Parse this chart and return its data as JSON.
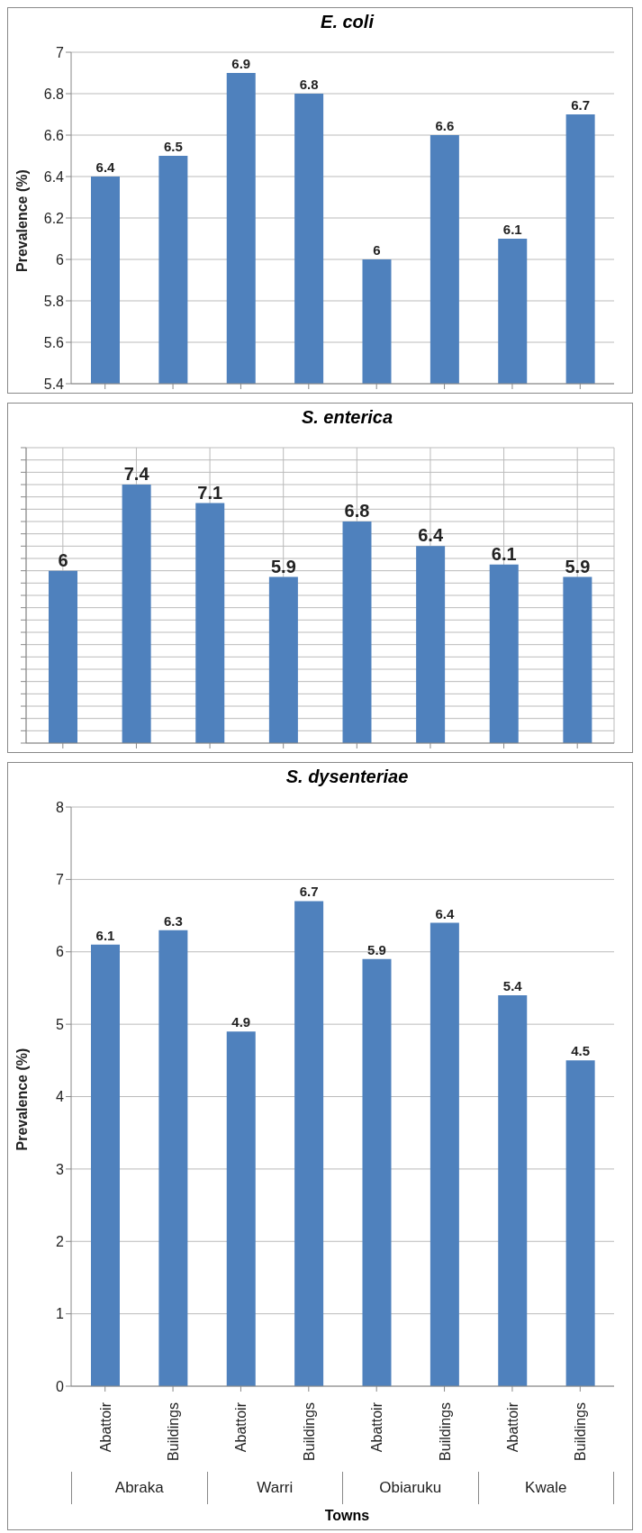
{
  "chart_data": [
    {
      "type": "bar",
      "title": "E. coli",
      "ylabel": "Prevalence (%)",
      "categories": [
        null,
        null,
        null,
        null,
        null,
        null,
        null,
        null
      ],
      "values": [
        6.4,
        6.5,
        6.9,
        6.8,
        6,
        6.6,
        6.1,
        6.7
      ],
      "color": "#4f81bd",
      "ylim": [
        5.4,
        7
      ],
      "yticks": [
        5.4,
        5.6,
        5.8,
        6,
        6.2,
        6.4,
        6.6,
        6.8,
        7
      ],
      "grid": "y",
      "data_labels": true,
      "tick_labels": "y"
    },
    {
      "type": "bar",
      "title": "S. enterica",
      "categories": [
        null,
        null,
        null,
        null,
        null,
        null,
        null,
        null
      ],
      "values": [
        6,
        7.4,
        7.1,
        5.9,
        6.8,
        6.4,
        6.1,
        5.9
      ],
      "color": "#4f81bd",
      "ylim": [
        3.2,
        8
      ],
      "grid": true,
      "data_labels": true,
      "tick_labels": false
    },
    {
      "type": "bar",
      "title": "S. dysenteriae",
      "ylabel": "Prevalence (%)",
      "xlabel": "Towns",
      "categories": [
        "Abattoir",
        "Buildings",
        "Abattoir",
        "Buildings",
        "Abattoir",
        "Buildings",
        "Abattoir",
        "Buildings"
      ],
      "values": [
        6.1,
        6.3,
        4.9,
        6.7,
        5.9,
        6.4,
        5.4,
        4.5
      ],
      "color": "#4f81bd",
      "ylim": [
        0,
        8
      ],
      "yticks": [
        0,
        1,
        2,
        3,
        4,
        5,
        6,
        7,
        8
      ],
      "grid": "y",
      "data_labels": true,
      "annotations": [
        "Abraka",
        "Warri",
        "Obiaruku",
        "Kwale"
      ]
    }
  ]
}
